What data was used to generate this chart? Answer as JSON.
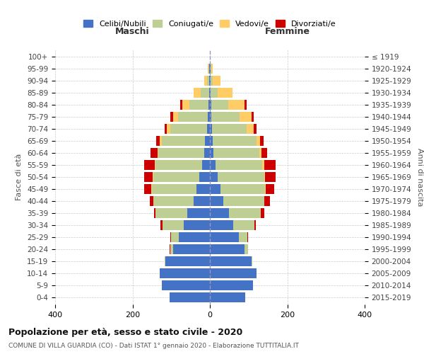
{
  "age_groups": [
    "0-4",
    "5-9",
    "10-14",
    "15-19",
    "20-24",
    "25-29",
    "30-34",
    "35-39",
    "40-44",
    "45-49",
    "50-54",
    "55-59",
    "60-64",
    "65-69",
    "70-74",
    "75-79",
    "80-84",
    "85-89",
    "90-94",
    "95-99",
    "100+"
  ],
  "birth_years": [
    "2015-2019",
    "2010-2014",
    "2005-2009",
    "2000-2004",
    "1995-1999",
    "1990-1994",
    "1985-1989",
    "1980-1984",
    "1975-1979",
    "1970-1974",
    "1965-1969",
    "1960-1964",
    "1955-1959",
    "1950-1954",
    "1945-1949",
    "1940-1944",
    "1935-1939",
    "1930-1934",
    "1925-1929",
    "1920-1924",
    "≤ 1919"
  ],
  "male": {
    "celibe": [
      105,
      125,
      130,
      115,
      95,
      80,
      68,
      58,
      42,
      35,
      28,
      20,
      15,
      12,
      8,
      5,
      3,
      2,
      1,
      1,
      0
    ],
    "coniugato": [
      0,
      0,
      0,
      2,
      8,
      20,
      55,
      82,
      105,
      115,
      118,
      120,
      118,
      112,
      95,
      78,
      50,
      22,
      6,
      2,
      0
    ],
    "vedovo": [
      0,
      0,
      0,
      0,
      0,
      0,
      0,
      0,
      0,
      2,
      2,
      2,
      3,
      5,
      8,
      12,
      18,
      18,
      8,
      2,
      0
    ],
    "divorziato": [
      0,
      0,
      0,
      0,
      1,
      2,
      4,
      5,
      8,
      18,
      22,
      28,
      18,
      10,
      5,
      8,
      5,
      0,
      0,
      0,
      0
    ]
  },
  "female": {
    "nubile": [
      92,
      112,
      120,
      108,
      90,
      75,
      60,
      50,
      35,
      28,
      20,
      14,
      10,
      8,
      5,
      4,
      3,
      2,
      1,
      1,
      0
    ],
    "coniugata": [
      0,
      0,
      0,
      2,
      8,
      22,
      55,
      82,
      105,
      115,
      120,
      122,
      118,
      112,
      90,
      72,
      45,
      18,
      6,
      2,
      0
    ],
    "vedova": [
      0,
      0,
      0,
      0,
      0,
      0,
      0,
      0,
      0,
      2,
      2,
      5,
      5,
      10,
      18,
      32,
      42,
      38,
      20,
      5,
      0
    ],
    "divorziata": [
      0,
      0,
      0,
      0,
      1,
      2,
      4,
      8,
      15,
      22,
      28,
      28,
      15,
      8,
      8,
      5,
      5,
      0,
      0,
      0,
      0
    ]
  },
  "colors": {
    "celibe": "#4472C4",
    "coniugato": "#BFCE93",
    "vedovo": "#FFCC66",
    "divorziato": "#CC0000"
  },
  "title": "Popolazione per età, sesso e stato civile - 2020",
  "subtitle": "COMUNE DI VILLA GUARDIA (CO) - Dati ISTAT 1° gennaio 2020 - Elaborazione TUTTITALIA.IT",
  "xlabel_left": "Maschi",
  "xlabel_right": "Femmine",
  "ylabel_left": "Fasce di età",
  "ylabel_right": "Anni di nascita",
  "xlim": 400,
  "bg_color": "#ffffff",
  "grid_color": "#cccccc",
  "legend_labels": [
    "Celibi/Nubili",
    "Coniugati/e",
    "Vedovi/e",
    "Divorziati/e"
  ]
}
